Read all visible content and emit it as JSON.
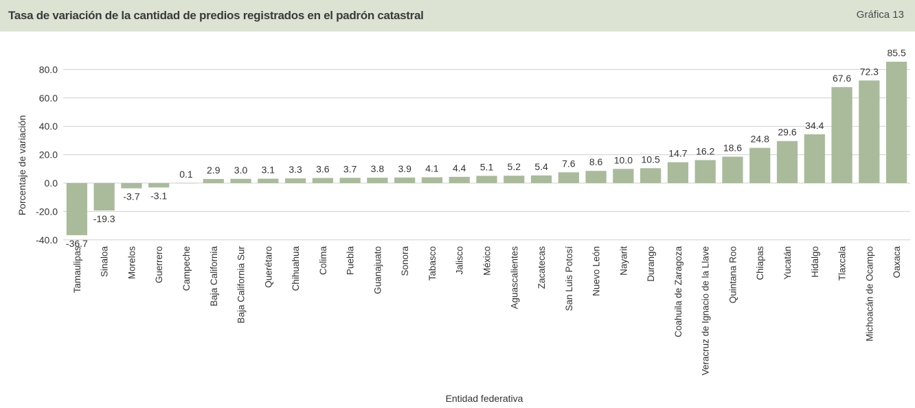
{
  "header": {
    "title": "Tasa de variación de la cantidad de predios registrados en el padrón catastral",
    "figure_tag": "Gráfica 13"
  },
  "colors": {
    "bar": "#a9bb9b",
    "grid": "#cfcfcf",
    "header_bg": "#dce3d3",
    "text": "#333333"
  },
  "chart_data": {
    "type": "bar",
    "title": "Tasa de variación de la cantidad de predios registrados en el padrón catastral",
    "xlabel": "Entidad federativa",
    "ylabel": "Porcentaje de variación",
    "ylim": [
      -40,
      90
    ],
    "yticks": [
      -40,
      -20,
      0,
      20,
      40,
      60,
      80
    ],
    "ytick_labels": [
      "-40.0",
      "-20.0",
      "0.0",
      "20.0",
      "40.0",
      "60.0",
      "80.0"
    ],
    "grid": true,
    "categories": [
      "Tamaulipas",
      "Sinaloa",
      "Morelos",
      "Guerrero",
      "Campeche",
      "Baja California",
      "Baja California Sur",
      "Querétaro",
      "Chihuahua",
      "Colima",
      "Puebla",
      "Guanajuato",
      "Sonora",
      "Tabasco",
      "Jalisco",
      "México",
      "Aguascalientes",
      "Zacatecas",
      "San Luis Potosí",
      "Nuevo León",
      "Nayarit",
      "Durango",
      "Coahuila de Zaragoza",
      "Veracruz de Ignacio de la Llave",
      "Quintana Roo",
      "Chiapas",
      "Yucatán",
      "Hidalgo",
      "Tlaxcala",
      "Michoacán de Ocampo",
      "Oaxaca"
    ],
    "values": [
      -36.7,
      -19.3,
      -3.7,
      -3.1,
      0.1,
      2.9,
      3.0,
      3.1,
      3.3,
      3.6,
      3.7,
      3.8,
      3.9,
      4.1,
      4.4,
      5.1,
      5.2,
      5.4,
      7.6,
      8.6,
      10.0,
      10.5,
      14.7,
      16.2,
      18.6,
      24.8,
      29.6,
      34.4,
      67.6,
      72.3,
      85.5
    ],
    "value_labels": [
      "-36.7",
      "-19.3",
      "-3.7",
      "-3.1",
      "0.1",
      "2.9",
      "3.0",
      "3.1",
      "3.3",
      "3.6",
      "3.7",
      "3.8",
      "3.9",
      "4.1",
      "4.4",
      "5.1",
      "5.2",
      "5.4",
      "7.6",
      "8.6",
      "10.0",
      "10.5",
      "14.7",
      "16.2",
      "18.6",
      "24.8",
      "29.6",
      "34.4",
      "67.6",
      "72.3",
      "85.5"
    ]
  }
}
